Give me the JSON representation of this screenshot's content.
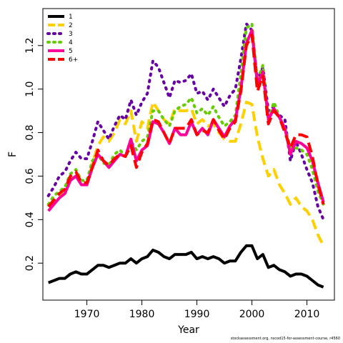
{
  "chart_data": {
    "type": "line",
    "xlabel": "Year",
    "ylabel": "F",
    "xlim": [
      1962,
      2015
    ],
    "ylim": [
      0.03,
      1.37
    ],
    "x_ticks": [
      "1970",
      "1980",
      "1990",
      "2000",
      "2010"
    ],
    "y_ticks": [
      "0.2",
      "0.4",
      "0.6",
      "0.8",
      "1.0",
      "1.2"
    ],
    "legend_position": "top-left",
    "x": [
      1963,
      1964,
      1965,
      1966,
      1967,
      1968,
      1969,
      1970,
      1971,
      1972,
      1973,
      1974,
      1975,
      1976,
      1977,
      1978,
      1979,
      1980,
      1981,
      1982,
      1983,
      1984,
      1985,
      1986,
      1987,
      1988,
      1989,
      1990,
      1991,
      1992,
      1993,
      1994,
      1995,
      1996,
      1997,
      1998,
      1999,
      2000,
      2001,
      2002,
      2003,
      2004,
      2005,
      2006,
      2007,
      2008,
      2009,
      2010,
      2011,
      2012,
      2013
    ],
    "series": [
      {
        "name": "1",
        "color": "#000000",
        "dash": "solid",
        "values": [
          0.11,
          0.12,
          0.13,
          0.13,
          0.15,
          0.16,
          0.15,
          0.15,
          0.17,
          0.19,
          0.19,
          0.18,
          0.19,
          0.2,
          0.2,
          0.22,
          0.2,
          0.22,
          0.23,
          0.26,
          0.25,
          0.23,
          0.22,
          0.24,
          0.24,
          0.24,
          0.25,
          0.22,
          0.23,
          0.22,
          0.23,
          0.22,
          0.2,
          0.21,
          0.21,
          0.25,
          0.28,
          0.28,
          0.22,
          0.24,
          0.18,
          0.19,
          0.17,
          0.16,
          0.14,
          0.15,
          0.15,
          0.14,
          0.12,
          0.1,
          0.09
        ]
      },
      {
        "name": "2",
        "color": "#ffd000",
        "dash": "dashed",
        "values": [
          0.46,
          0.49,
          0.51,
          0.52,
          0.59,
          0.61,
          0.56,
          0.56,
          0.66,
          0.74,
          0.78,
          0.76,
          0.8,
          0.86,
          0.84,
          0.9,
          0.76,
          0.85,
          0.82,
          0.94,
          0.9,
          0.86,
          0.84,
          0.91,
          0.9,
          0.9,
          0.91,
          0.84,
          0.86,
          0.83,
          0.84,
          0.8,
          0.77,
          0.76,
          0.76,
          0.84,
          0.94,
          0.93,
          0.78,
          0.68,
          0.6,
          0.63,
          0.56,
          0.52,
          0.47,
          0.5,
          0.46,
          0.44,
          0.4,
          0.33,
          0.28
        ]
      },
      {
        "name": "3",
        "color": "#6600a0",
        "dash": "dotted",
        "values": [
          0.51,
          0.55,
          0.6,
          0.62,
          0.67,
          0.71,
          0.68,
          0.68,
          0.76,
          0.85,
          0.81,
          0.77,
          0.83,
          0.88,
          0.86,
          0.95,
          0.88,
          0.94,
          0.98,
          1.13,
          1.1,
          1.03,
          0.96,
          1.04,
          1.03,
          1.04,
          1.07,
          0.98,
          0.99,
          0.95,
          1.0,
          0.96,
          0.92,
          0.97,
          1.0,
          1.14,
          1.3,
          1.27,
          1.04,
          1.1,
          0.9,
          0.92,
          0.88,
          0.86,
          0.67,
          0.76,
          0.7,
          0.63,
          0.57,
          0.46,
          0.4
        ]
      },
      {
        "name": "4",
        "color": "#66cc00",
        "dash": "dotted",
        "values": [
          0.47,
          0.51,
          0.53,
          0.55,
          0.61,
          0.63,
          0.58,
          0.58,
          0.67,
          0.7,
          0.66,
          0.65,
          0.7,
          0.72,
          0.69,
          0.76,
          0.72,
          0.76,
          0.78,
          0.9,
          0.9,
          0.86,
          0.83,
          0.9,
          0.92,
          0.93,
          0.96,
          0.89,
          0.91,
          0.88,
          0.92,
          0.87,
          0.83,
          0.85,
          0.88,
          1.07,
          1.28,
          1.3,
          1.04,
          1.11,
          0.86,
          0.94,
          0.87,
          0.82,
          0.73,
          0.73,
          0.72,
          0.7,
          0.63,
          0.53,
          0.47
        ]
      },
      {
        "name": "5",
        "color": "#ff0099",
        "dash": "solid",
        "values": [
          0.44,
          0.47,
          0.5,
          0.52,
          0.58,
          0.6,
          0.56,
          0.56,
          0.64,
          0.7,
          0.67,
          0.64,
          0.67,
          0.7,
          0.69,
          0.77,
          0.67,
          0.72,
          0.74,
          0.85,
          0.84,
          0.8,
          0.75,
          0.82,
          0.79,
          0.79,
          0.85,
          0.79,
          0.82,
          0.79,
          0.86,
          0.82,
          0.78,
          0.83,
          0.86,
          1.0,
          1.21,
          1.27,
          1.02,
          1.08,
          0.86,
          0.91,
          0.87,
          0.82,
          0.7,
          0.76,
          0.75,
          0.73,
          0.67,
          0.57,
          0.48
        ]
      },
      {
        "name": "6+",
        "color": "#ff0000",
        "dash": "dashed",
        "values": [
          0.46,
          0.49,
          0.52,
          0.54,
          0.6,
          0.62,
          0.57,
          0.57,
          0.64,
          0.72,
          0.67,
          0.65,
          0.68,
          0.7,
          0.69,
          0.74,
          0.64,
          0.71,
          0.75,
          0.86,
          0.85,
          0.8,
          0.75,
          0.82,
          0.82,
          0.82,
          0.86,
          0.79,
          0.81,
          0.8,
          0.86,
          0.81,
          0.77,
          0.82,
          0.85,
          0.99,
          1.2,
          1.25,
          0.99,
          1.06,
          0.84,
          0.9,
          0.87,
          0.8,
          0.73,
          0.79,
          0.79,
          0.78,
          0.69,
          0.56,
          0.47
        ]
      }
    ]
  },
  "credit": "stockassessment.org, nscod15-for-assessment-course, r4560"
}
